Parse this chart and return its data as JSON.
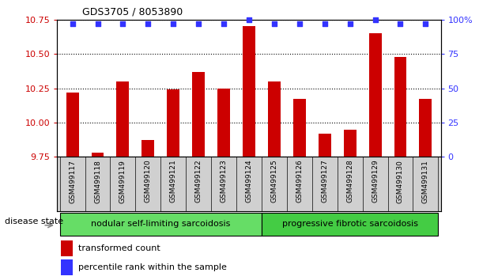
{
  "title": "GDS3705 / 8053890",
  "samples": [
    "GSM499117",
    "GSM499118",
    "GSM499119",
    "GSM499120",
    "GSM499121",
    "GSM499122",
    "GSM499123",
    "GSM499124",
    "GSM499125",
    "GSM499126",
    "GSM499127",
    "GSM499128",
    "GSM499129",
    "GSM499130",
    "GSM499131"
  ],
  "transformed_count": [
    10.22,
    9.78,
    10.3,
    9.87,
    10.24,
    10.37,
    10.25,
    10.7,
    10.3,
    10.17,
    9.92,
    9.95,
    10.65,
    10.48,
    10.17
  ],
  "percentile_rank": [
    97,
    97,
    97,
    97,
    97,
    97,
    97,
    100,
    97,
    97,
    97,
    97,
    100,
    97,
    97
  ],
  "ylim_left": [
    9.75,
    10.75
  ],
  "ylim_right": [
    0,
    100
  ],
  "yticks_left": [
    9.75,
    10.0,
    10.25,
    10.5,
    10.75
  ],
  "yticks_right": [
    0,
    25,
    50,
    75,
    100
  ],
  "bar_color": "#cc0000",
  "dot_color": "#3333ff",
  "group1_label": "nodular self-limiting sarcoidosis",
  "group2_label": "progressive fibrotic sarcoidosis",
  "group1_indices": [
    0,
    1,
    2,
    3,
    4,
    5,
    6,
    7
  ],
  "group2_indices": [
    8,
    9,
    10,
    11,
    12,
    13,
    14
  ],
  "disease_state_label": "disease state",
  "legend_bar_label": "transformed count",
  "legend_dot_label": "percentile rank within the sample",
  "group1_color": "#66dd66",
  "group2_color": "#44cc44",
  "left_color": "#cc0000",
  "right_color": "#3333ff",
  "baseline": 9.75,
  "bar_width": 0.5,
  "xlim": [
    -0.6,
    14.6
  ]
}
